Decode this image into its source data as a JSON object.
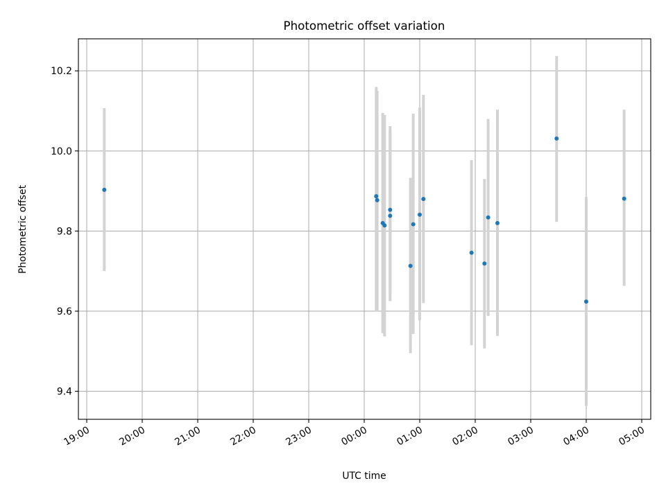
{
  "chart_data": {
    "type": "scatter",
    "title": "Photometric offset variation",
    "xlabel": "UTC time",
    "ylabel": "Photometric offset",
    "x_ticks": [
      "19:00",
      "20:00",
      "21:00",
      "22:00",
      "23:00",
      "00:00",
      "01:00",
      "02:00",
      "03:00",
      "04:00",
      "05:00"
    ],
    "x_tick_hours": [
      0,
      1,
      2,
      3,
      4,
      5,
      6,
      7,
      8,
      9,
      10
    ],
    "xlim_hours": [
      -0.14,
      10.14
    ],
    "y_ticks": [
      "9.4",
      "9.6",
      "9.8",
      "10.0",
      "10.2"
    ],
    "y_tick_values": [
      9.4,
      9.6,
      9.8,
      10.0,
      10.2
    ],
    "ylim": [
      9.33,
      10.28
    ],
    "grid": true,
    "point_color": "#1f77b4",
    "errorbar_color": "#d3d3d3",
    "series": [
      {
        "points": [
          {
            "x": "19:19",
            "y": 9.903,
            "ylow": 9.7,
            "yhigh": 10.107
          },
          {
            "x": "00:13",
            "y": 9.887,
            "ylow": 9.6,
            "yhigh": 10.16
          },
          {
            "x": "00:14",
            "y": 9.877,
            "ylow": 9.6,
            "yhigh": 10.15
          },
          {
            "x": "00:20",
            "y": 9.82,
            "ylow": 9.545,
            "yhigh": 10.095
          },
          {
            "x": "00:22",
            "y": 9.814,
            "ylow": 9.537,
            "yhigh": 10.09
          },
          {
            "x": "00:28",
            "y": 9.853,
            "ylow": 9.645,
            "yhigh": 10.062
          },
          {
            "x": "00:28",
            "y": 9.838,
            "ylow": 9.625,
            "yhigh": 10.05
          },
          {
            "x": "00:50",
            "y": 9.713,
            "ylow": 9.495,
            "yhigh": 9.933
          },
          {
            "x": "00:53",
            "y": 9.817,
            "ylow": 9.543,
            "yhigh": 10.093
          },
          {
            "x": "01:00",
            "y": 9.841,
            "ylow": 9.577,
            "yhigh": 10.108
          },
          {
            "x": "01:04",
            "y": 9.88,
            "ylow": 9.62,
            "yhigh": 10.14
          },
          {
            "x": "01:56",
            "y": 9.746,
            "ylow": 9.515,
            "yhigh": 9.977
          },
          {
            "x": "02:10",
            "y": 9.719,
            "ylow": 9.507,
            "yhigh": 9.93
          },
          {
            "x": "02:14",
            "y": 9.834,
            "ylow": 9.588,
            "yhigh": 10.08
          },
          {
            "x": "02:24",
            "y": 9.82,
            "ylow": 9.538,
            "yhigh": 10.103
          },
          {
            "x": "03:28",
            "y": 10.031,
            "ylow": 9.823,
            "yhigh": 10.237
          },
          {
            "x": "04:00",
            "y": 9.624,
            "ylow": 9.363,
            "yhigh": 9.885
          },
          {
            "x": "04:41",
            "y": 9.881,
            "ylow": 9.663,
            "yhigh": 10.103
          }
        ]
      }
    ]
  }
}
